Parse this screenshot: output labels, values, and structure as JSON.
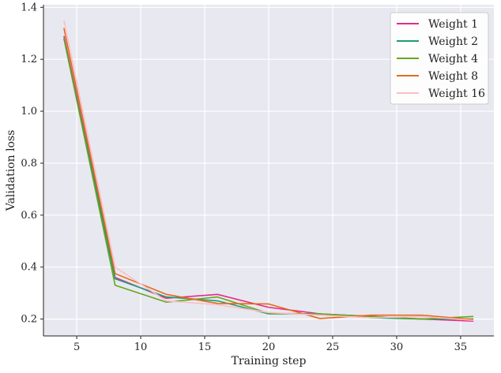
{
  "chart_data": {
    "type": "line",
    "xlabel": "Training step",
    "ylabel": "Validation loss",
    "xlim": [
      2.4,
      37.6
    ],
    "ylim": [
      0.135,
      1.41
    ],
    "xticks": [
      5,
      10,
      15,
      20,
      25,
      30,
      35
    ],
    "yticks": [
      0.2,
      0.4,
      0.6,
      0.8,
      1.0,
      1.2,
      1.4
    ],
    "grid": true,
    "legend_position": "top-right",
    "background": "#e8e8f0",
    "x": [
      4,
      8,
      12,
      16,
      20,
      24,
      28,
      32,
      36
    ],
    "series": [
      {
        "name": "Weight 1",
        "color": "#e7298a",
        "values": [
          1.29,
          0.36,
          0.28,
          0.295,
          0.245,
          0.22,
          0.21,
          0.2,
          0.192
        ]
      },
      {
        "name": "Weight 2",
        "color": "#1b9e77",
        "values": [
          1.28,
          0.355,
          0.285,
          0.27,
          0.22,
          0.22,
          0.205,
          0.2,
          0.2
        ]
      },
      {
        "name": "Weight 4",
        "color": "#66a61e",
        "values": [
          1.28,
          0.33,
          0.265,
          0.285,
          0.222,
          0.22,
          0.21,
          0.2,
          0.21
        ]
      },
      {
        "name": "Weight 8",
        "color": "#e66a1a",
        "values": [
          1.32,
          0.375,
          0.295,
          0.26,
          0.258,
          0.202,
          0.215,
          0.215,
          0.198
        ]
      },
      {
        "name": "Weight 16",
        "color": "#fbbfc8",
        "values": [
          1.35,
          0.4,
          0.27,
          0.255,
          0.225,
          0.215,
          0.205,
          0.21,
          0.195
        ]
      }
    ]
  }
}
